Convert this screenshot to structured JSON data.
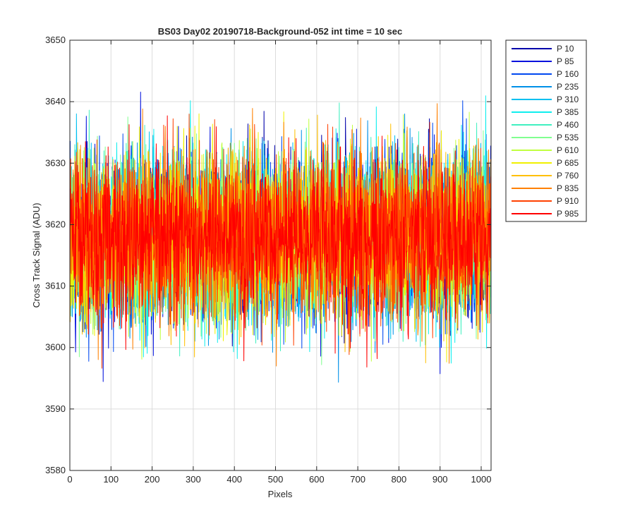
{
  "chart_data": {
    "type": "line",
    "title": "BS03 Day02 20190718-Background-052 int time = 10 sec",
    "xlabel": "Pixels",
    "ylabel": "Cross Track Signal (ADU)",
    "xlim": [
      0,
      1024
    ],
    "ylim": [
      3580,
      3650
    ],
    "xticks": [
      0,
      100,
      200,
      300,
      400,
      500,
      600,
      700,
      800,
      900,
      1000
    ],
    "yticks": [
      3580,
      3590,
      3600,
      3610,
      3620,
      3630,
      3640,
      3650
    ],
    "grid": true,
    "legend_location": "outside-top-right",
    "baseline_mean": 3618,
    "noise_peak_to_peak": 50,
    "series": [
      {
        "name": "P 10",
        "color": "#0000AA"
      },
      {
        "name": "P 85",
        "color": "#0010DD"
      },
      {
        "name": "P 160",
        "color": "#0048F0"
      },
      {
        "name": "P 235",
        "color": "#0090E8"
      },
      {
        "name": "P 310",
        "color": "#00C0F0"
      },
      {
        "name": "P 385",
        "color": "#10EEEE"
      },
      {
        "name": "P 460",
        "color": "#40F0C0"
      },
      {
        "name": "P 535",
        "color": "#80FF90"
      },
      {
        "name": "P 610",
        "color": "#C0FF40"
      },
      {
        "name": "P 685",
        "color": "#F0F000"
      },
      {
        "name": "P 760",
        "color": "#FFC000"
      },
      {
        "name": "P 835",
        "color": "#FF8000"
      },
      {
        "name": "P 910",
        "color": "#FF4000"
      },
      {
        "name": "P 985",
        "color": "#FF0000"
      }
    ]
  }
}
